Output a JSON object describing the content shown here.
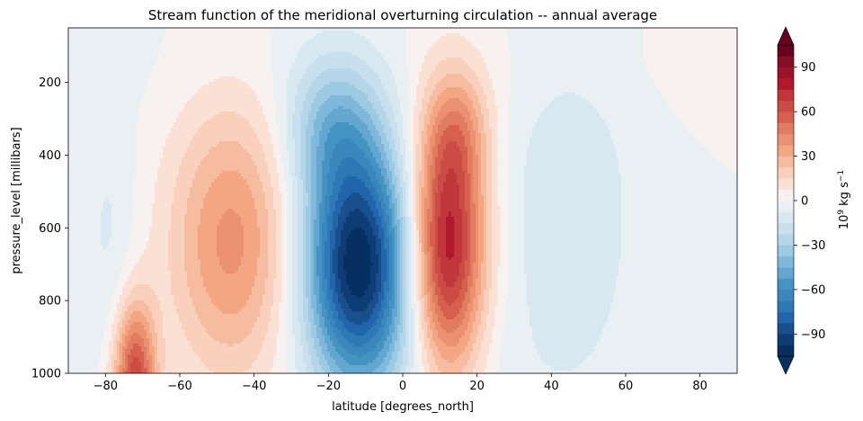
{
  "chart_data": {
    "type": "heatmap",
    "plot": "filled contour",
    "title": "Stream function of the meridional overturning circulation -- annual average",
    "xlabel": "latitude [degrees_north]",
    "ylabel": "pressure_level [millibars]",
    "xlim": [
      -90,
      90
    ],
    "ylim": [
      1000,
      50
    ],
    "y_inverted": true,
    "x_ticks": [
      -80,
      -60,
      -40,
      -20,
      0,
      20,
      40,
      60,
      80
    ],
    "y_ticks": [
      200,
      400,
      600,
      800,
      1000
    ],
    "grid": false,
    "colormap": "RdBu_r",
    "colorbar": {
      "label_base": "10",
      "label_exp": "9",
      "label_unit": "kg s",
      "label_unit_exp": "−1",
      "ticks": [
        90,
        60,
        30,
        0,
        -30,
        -60,
        -90
      ],
      "levels": [
        -105,
        -97.5,
        -90,
        -82.5,
        -75,
        -67.5,
        -60,
        -52.5,
        -45,
        -37.5,
        -30,
        -22.5,
        -15,
        -7.5,
        0,
        7.5,
        15,
        22.5,
        30,
        37.5,
        45,
        52.5,
        60,
        67.5,
        75,
        82.5,
        90,
        97.5,
        105
      ],
      "extend": "both"
    },
    "features": [
      {
        "name": "Southern Hemisphere Hadley cell (negative)",
        "lat": -12,
        "pressure": 720,
        "peak": -105
      },
      {
        "name": "Northern Hemisphere Hadley cell (positive)",
        "lat": 12,
        "pressure": 620,
        "peak": 80
      },
      {
        "name": "Southern Ferrel cell (positive)",
        "lat": -46,
        "pressure": 650,
        "peak": 40
      },
      {
        "name": "Northern Ferrel cell (negative)",
        "lat": 45,
        "pressure": 600,
        "peak": -15
      },
      {
        "name": "Antarctic near-surface cell (positive)",
        "lat": -72,
        "pressure": 990,
        "peak": 55
      },
      {
        "name": "Southern polar cell (negative)",
        "lat": -78,
        "pressure": 600,
        "peak": -10
      }
    ]
  }
}
